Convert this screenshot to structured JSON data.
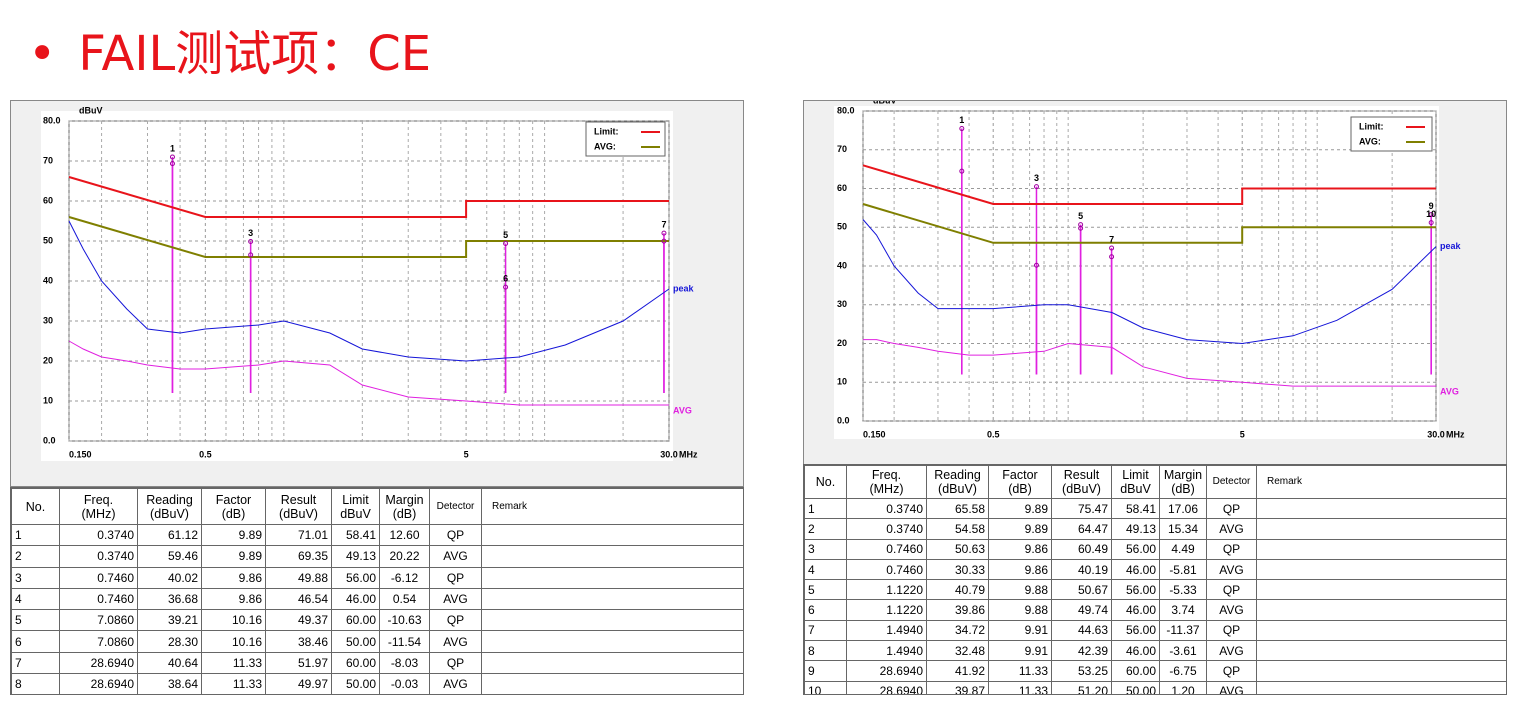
{
  "header": {
    "bullet": "•",
    "title": "FAIL测试项：CE"
  },
  "chart_data": [
    {
      "type": "line",
      "y_unit": "dBuV",
      "x_unit": "MHz",
      "xscale": "log",
      "grid": true,
      "legend": "top-right",
      "xlim": [
        0.15,
        30
      ],
      "ylim": [
        0,
        80
      ],
      "xticks": [
        {
          "value": 0.15,
          "label": "0.150"
        },
        0.5,
        5,
        {
          "value": 30,
          "label": "30.0"
        }
      ],
      "yticks": [
        {
          "value": 0,
          "label": "0.0"
        },
        10,
        20,
        30,
        40,
        50,
        60,
        70,
        {
          "value": 80,
          "label": "80.0"
        }
      ],
      "series": [
        {
          "name": "Limit:",
          "color": "#e8141b",
          "legend": true,
          "x": [
            0.15,
            0.5,
            5,
            5,
            30
          ],
          "values": [
            66,
            56,
            56,
            60,
            60
          ]
        },
        {
          "name": "AVG:",
          "color": "#7f7f00",
          "legend": true,
          "x": [
            0.15,
            0.5,
            5,
            5,
            30
          ],
          "values": [
            56,
            46,
            46,
            50,
            50
          ]
        },
        {
          "name": "peak",
          "color": "#1515d8",
          "legend": false,
          "x": [
            0.15,
            0.17,
            0.2,
            0.25,
            0.3,
            0.4,
            0.5,
            0.8,
            1,
            1.5,
            2,
            3,
            5,
            8,
            12,
            20,
            30
          ],
          "values": [
            55,
            48,
            40,
            33,
            28,
            27,
            28,
            29,
            30,
            27,
            23,
            21,
            20,
            21,
            24,
            30,
            38
          ]
        },
        {
          "name": "AVG",
          "color": "#e020e0",
          "legend": false,
          "x": [
            0.15,
            0.17,
            0.2,
            0.25,
            0.3,
            0.4,
            0.5,
            0.8,
            1,
            1.5,
            2,
            3,
            5,
            8,
            12,
            20,
            30
          ],
          "values": [
            25,
            23,
            21,
            20,
            19,
            18,
            18,
            19,
            20,
            19,
            14,
            11,
            10,
            9,
            9,
            9,
            9
          ]
        }
      ],
      "markers": {
        "color": "#a000a0",
        "labels": [
          "1",
          null,
          "3",
          null,
          "5",
          "6",
          "7",
          null
        ],
        "x": [
          0.374,
          0.374,
          0.746,
          0.746,
          7.086,
          7.086,
          28.694,
          28.694
        ],
        "y": [
          71.01,
          69.35,
          49.88,
          46.54,
          49.37,
          38.46,
          51.97,
          49.97
        ]
      }
    },
    {
      "type": "line",
      "y_unit": "dBuV",
      "x_unit": "MHz",
      "xscale": "log",
      "grid": true,
      "legend": "top-right",
      "xlim": [
        0.15,
        30
      ],
      "ylim": [
        0,
        80
      ],
      "xticks": [
        {
          "value": 0.15,
          "label": "0.150"
        },
        0.5,
        5,
        {
          "value": 30,
          "label": "30.0"
        }
      ],
      "yticks": [
        {
          "value": 0,
          "label": "0.0"
        },
        10,
        20,
        30,
        40,
        50,
        60,
        70,
        {
          "value": 80,
          "label": "80.0"
        }
      ],
      "series": [
        {
          "name": "Limit:",
          "color": "#e8141b",
          "legend": true,
          "x": [
            0.15,
            0.5,
            5,
            5,
            30
          ],
          "values": [
            66,
            56,
            56,
            60,
            60
          ]
        },
        {
          "name": "AVG:",
          "color": "#7f7f00",
          "legend": true,
          "x": [
            0.15,
            0.5,
            5,
            5,
            30
          ],
          "values": [
            56,
            46,
            46,
            50,
            50
          ]
        },
        {
          "name": "peak",
          "color": "#1515d8",
          "legend": false,
          "x": [
            0.15,
            0.17,
            0.2,
            0.25,
            0.3,
            0.4,
            0.5,
            0.8,
            1,
            1.5,
            2,
            3,
            5,
            8,
            12,
            20,
            30
          ],
          "values": [
            52,
            48,
            40,
            33,
            29,
            29,
            29,
            30,
            30,
            28,
            24,
            21,
            20,
            22,
            26,
            34,
            45
          ]
        },
        {
          "name": "AVG",
          "color": "#e020e0",
          "legend": false,
          "x": [
            0.15,
            0.17,
            0.2,
            0.25,
            0.3,
            0.4,
            0.5,
            0.8,
            1,
            1.5,
            2,
            3,
            5,
            8,
            12,
            20,
            30
          ],
          "values": [
            21,
            21,
            20,
            19,
            18,
            17,
            17,
            18,
            20,
            19,
            14,
            11,
            10,
            9,
            9,
            9,
            9
          ]
        }
      ],
      "markers": {
        "color": "#a000a0",
        "labels": [
          "1",
          null,
          "3",
          null,
          "5",
          null,
          "7",
          null,
          "9",
          "10"
        ],
        "x": [
          0.374,
          0.374,
          0.746,
          0.746,
          1.122,
          1.122,
          1.494,
          1.494,
          28.694,
          28.694
        ],
        "y": [
          75.47,
          64.47,
          60.49,
          40.19,
          50.67,
          49.74,
          44.63,
          42.39,
          53.25,
          51.2
        ]
      }
    }
  ],
  "tables": [
    {
      "header": [
        [
          "No."
        ],
        [
          "Freq.",
          "(MHz)"
        ],
        [
          "Reading",
          "(dBuV)"
        ],
        [
          "Factor",
          "(dB)"
        ],
        [
          "Result",
          "(dBuV)"
        ],
        [
          "Limit",
          "dBuV"
        ],
        [
          "Margin",
          "(dB)"
        ],
        [
          "Detector"
        ],
        [
          "Remark"
        ]
      ],
      "rows": [
        [
          "1",
          "0.3740",
          "61.12",
          "9.89",
          "71.01",
          "58.41",
          "12.60",
          "QP"
        ],
        [
          "2",
          "0.3740",
          "59.46",
          "9.89",
          "69.35",
          "49.13",
          "20.22",
          "AVG"
        ],
        [
          "3",
          "0.7460",
          "40.02",
          "9.86",
          "49.88",
          "56.00",
          "-6.12",
          "QP"
        ],
        [
          "4",
          "0.7460",
          "36.68",
          "9.86",
          "46.54",
          "46.00",
          "0.54",
          "AVG"
        ],
        [
          "5",
          "7.0860",
          "39.21",
          "10.16",
          "49.37",
          "60.00",
          "-10.63",
          "QP"
        ],
        [
          "6",
          "7.0860",
          "28.30",
          "10.16",
          "38.46",
          "50.00",
          "-11.54",
          "AVG"
        ],
        [
          "7",
          "28.6940",
          "40.64",
          "11.33",
          "51.97",
          "60.00",
          "-8.03",
          "QP"
        ],
        [
          "8",
          "28.6940",
          "38.64",
          "11.33",
          "49.97",
          "50.00",
          "-0.03",
          "AVG"
        ]
      ]
    },
    {
      "header": [
        [
          "No."
        ],
        [
          "Freq.",
          "(MHz)"
        ],
        [
          "Reading",
          "(dBuV)"
        ],
        [
          "Factor",
          "(dB)"
        ],
        [
          "Result",
          "(dBuV)"
        ],
        [
          "Limit",
          "dBuV"
        ],
        [
          "Margin",
          "(dB)"
        ],
        [
          "Detector"
        ],
        [
          "Remark"
        ]
      ],
      "rows": [
        [
          "1",
          "0.3740",
          "65.58",
          "9.89",
          "75.47",
          "58.41",
          "17.06",
          "QP"
        ],
        [
          "2",
          "0.3740",
          "54.58",
          "9.89",
          "64.47",
          "49.13",
          "15.34",
          "AVG"
        ],
        [
          "3",
          "0.7460",
          "50.63",
          "9.86",
          "60.49",
          "56.00",
          "4.49",
          "QP"
        ],
        [
          "4",
          "0.7460",
          "30.33",
          "9.86",
          "40.19",
          "46.00",
          "-5.81",
          "AVG"
        ],
        [
          "5",
          "1.1220",
          "40.79",
          "9.88",
          "50.67",
          "56.00",
          "-5.33",
          "QP"
        ],
        [
          "6",
          "1.1220",
          "39.86",
          "9.88",
          "49.74",
          "46.00",
          "3.74",
          "AVG"
        ],
        [
          "7",
          "1.4940",
          "34.72",
          "9.91",
          "44.63",
          "56.00",
          "-11.37",
          "QP"
        ],
        [
          "8",
          "1.4940",
          "32.48",
          "9.91",
          "42.39",
          "46.00",
          "-3.61",
          "AVG"
        ],
        [
          "9",
          "28.6940",
          "41.92",
          "11.33",
          "53.25",
          "60.00",
          "-6.75",
          "QP"
        ],
        [
          "10",
          "28.6940",
          "39.87",
          "11.33",
          "51.20",
          "50.00",
          "1.20",
          "AVG"
        ]
      ]
    }
  ]
}
